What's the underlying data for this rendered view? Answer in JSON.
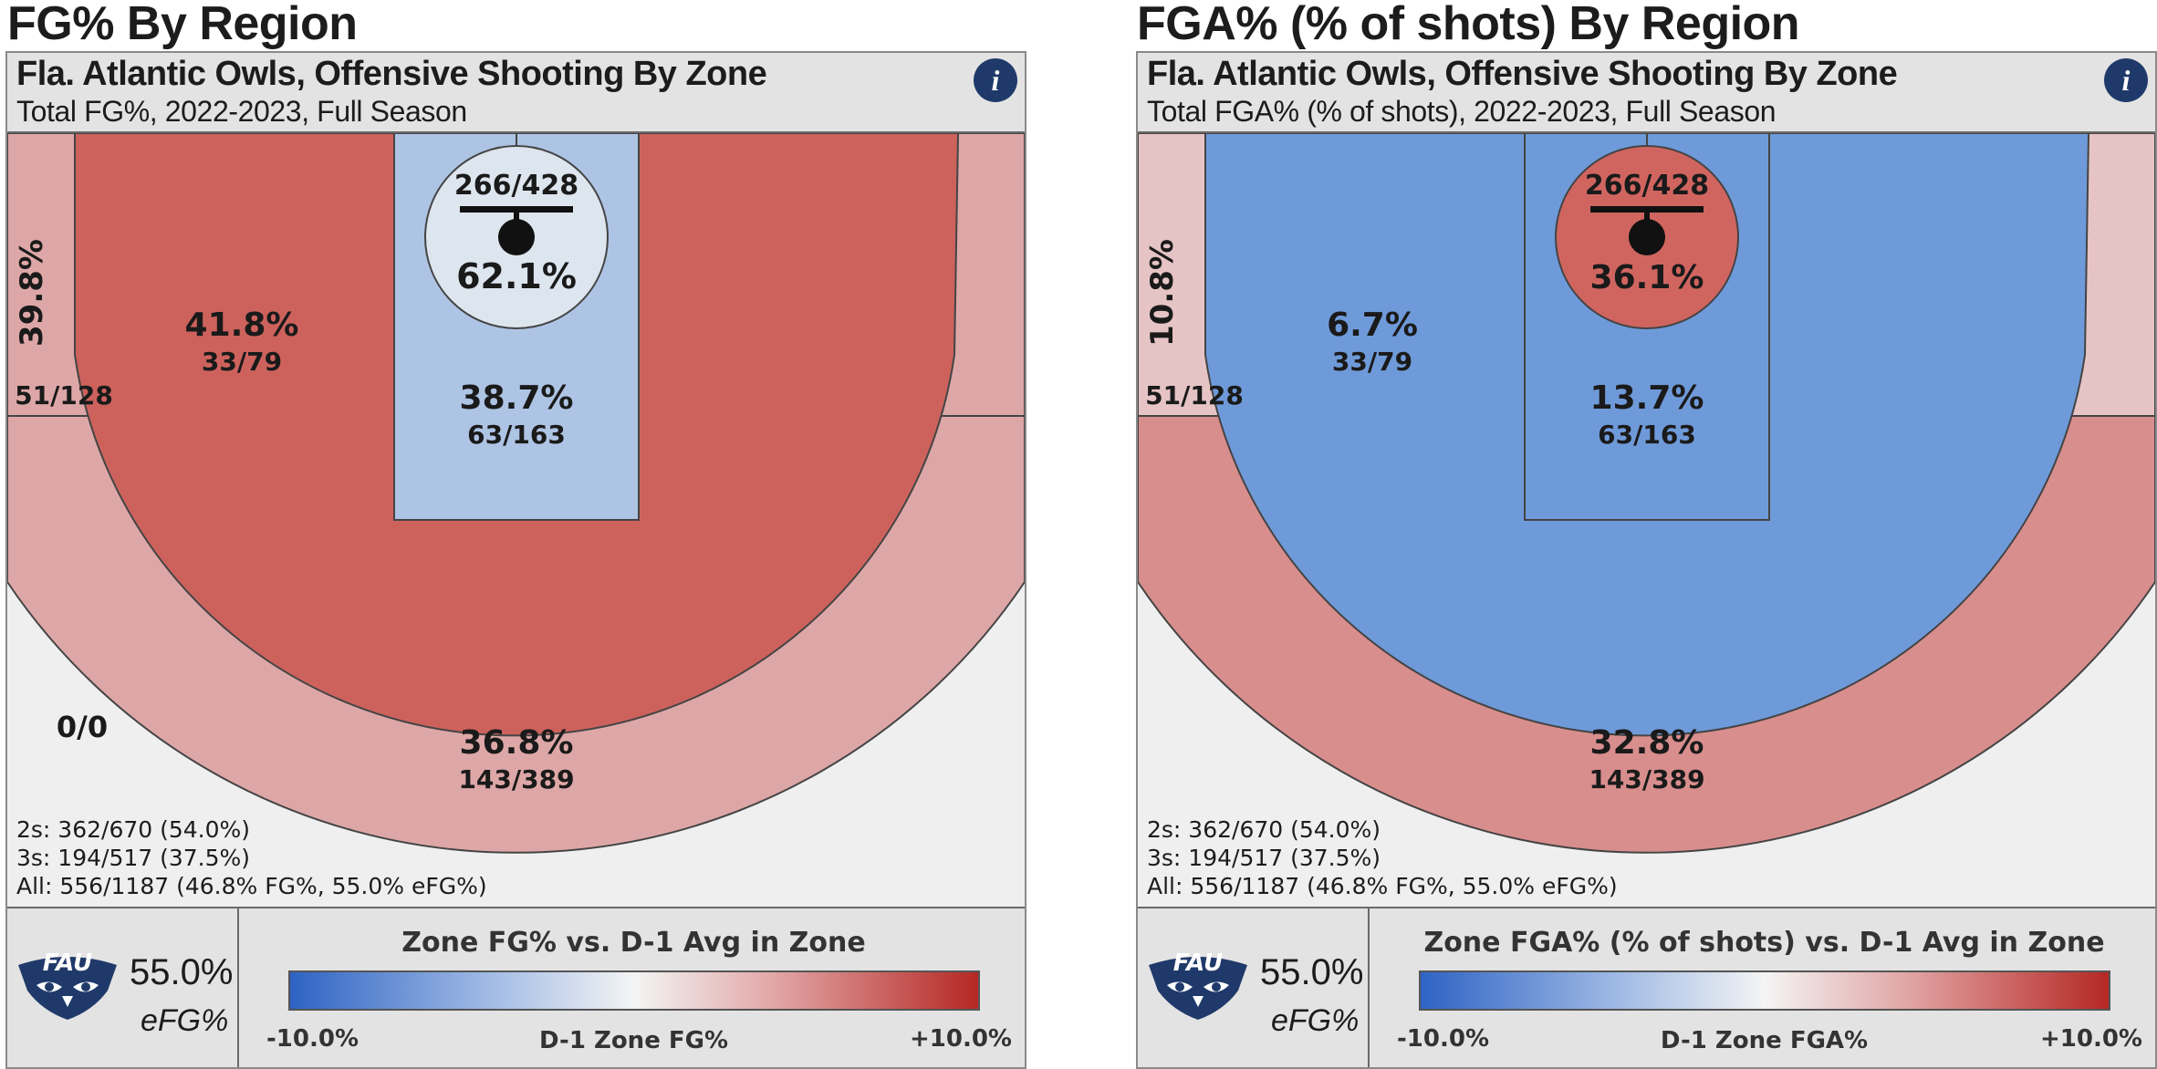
{
  "team": "Fla. Atlantic Owls",
  "logo_text": "FAU",
  "panels": [
    {
      "heading": "FG% By Region",
      "title": "Fla. Atlantic Owls, Offensive Shooting By Zone",
      "subtitle": "Total FG%, 2022-2023, Full Season",
      "info_icon": "i",
      "zones": {
        "rim": {
          "pct": "62.1%",
          "frac": "266/428",
          "color": "#dde5ee"
        },
        "paint": {
          "pct": "38.7%",
          "frac": "63/163",
          "color": "#aec4e4"
        },
        "midrange": {
          "pct": "41.8%",
          "frac": "33/79",
          "color": "#cd625d"
        },
        "corner_left": {
          "pct": "39.8%",
          "frac": "51/128",
          "color": "#dea7a7"
        },
        "wing_right": {
          "color": "#dea7a7"
        },
        "three": {
          "pct": "36.8%",
          "frac": "143/389",
          "color": "#dea7a7"
        },
        "deep": {
          "frac": "0/0",
          "color": "#efefef"
        }
      },
      "totals": {
        "twos": "2s: 362/670 (54.0%)",
        "threes": "3s: 194/517 (37.5%)",
        "all": "All: 556/1187 (46.8% FG%, 55.0% eFG%)"
      },
      "efg_value": "55.0%",
      "efg_label": "eFG%",
      "scale": {
        "title": "Zone FG% vs. D-1 Avg in Zone",
        "min": "-10.0%",
        "mid": "D-1 Zone FG%",
        "max": "+10.0%"
      }
    },
    {
      "heading": "FGA% (% of shots) By Region",
      "title": "Fla. Atlantic Owls, Offensive Shooting By Zone",
      "subtitle": "Total FGA% (% of shots), 2022-2023, Full Season",
      "info_icon": "i",
      "zones": {
        "rim": {
          "pct": "36.1%",
          "frac": "266/428",
          "color": "#d06560"
        },
        "paint": {
          "pct": "13.7%",
          "frac": "63/163",
          "color": "#6f9ad9"
        },
        "midrange": {
          "pct": "6.7%",
          "frac": "33/79",
          "color": "#6f9ad9"
        },
        "corner_left": {
          "pct": "10.8%",
          "frac": "51/128",
          "color": "#e6c4c5"
        },
        "wing_right": {
          "color": "#e6c4c5"
        },
        "three": {
          "pct": "32.8%",
          "frac": "143/389",
          "color": "#d88e8d"
        },
        "deep": {
          "frac": "",
          "color": "#efefef"
        }
      },
      "totals": {
        "twos": "2s: 362/670 (54.0%)",
        "threes": "3s: 194/517 (37.5%)",
        "all": "All: 556/1187 (46.8% FG%, 55.0% eFG%)"
      },
      "efg_value": "55.0%",
      "efg_label": "eFG%",
      "scale": {
        "title": "Zone FGA% (% of shots) vs. D-1 Avg in Zone",
        "min": "-10.0%",
        "mid": "D-1 Zone FGA%",
        "max": "+10.0%"
      }
    }
  ],
  "chart_data": [
    {
      "type": "heatmap",
      "title": "FG% By Region",
      "subtitle": "Total FG%, 2022-2023, Full Season",
      "zones": [
        {
          "zone": "Rim",
          "value": 62.1,
          "made": 266,
          "attempts": 428
        },
        {
          "zone": "Paint",
          "value": 38.7,
          "made": 63,
          "attempts": 163
        },
        {
          "zone": "Mid-range",
          "value": 41.8,
          "made": 33,
          "attempts": 79
        },
        {
          "zone": "Corner",
          "value": 39.8,
          "made": 51,
          "attempts": 128
        },
        {
          "zone": "Three",
          "value": 36.8,
          "made": 143,
          "attempts": 389
        },
        {
          "zone": "Deep",
          "made": 0,
          "attempts": 0
        }
      ],
      "color_scale": {
        "min": -10.0,
        "max": 10.0,
        "label": "D-1 Zone FG%"
      }
    },
    {
      "type": "heatmap",
      "title": "FGA% (% of shots) By Region",
      "subtitle": "Total FGA% (% of shots), 2022-2023, Full Season",
      "zones": [
        {
          "zone": "Rim",
          "value": 36.1,
          "made": 266,
          "attempts": 428
        },
        {
          "zone": "Paint",
          "value": 13.7,
          "made": 63,
          "attempts": 163
        },
        {
          "zone": "Mid-range",
          "value": 6.7,
          "made": 33,
          "attempts": 79
        },
        {
          "zone": "Corner",
          "value": 10.8,
          "made": 51,
          "attempts": 128
        },
        {
          "zone": "Three",
          "value": 32.8,
          "made": 143,
          "attempts": 389
        }
      ],
      "color_scale": {
        "min": -10.0,
        "max": 10.0,
        "label": "D-1 Zone FGA%"
      }
    }
  ]
}
